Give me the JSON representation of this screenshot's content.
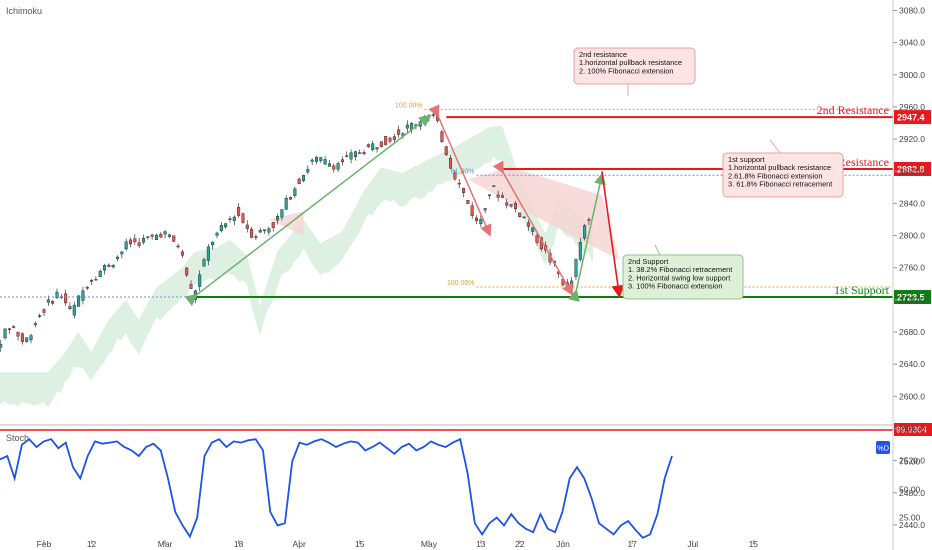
{
  "chart_data": [
    {
      "type": "line",
      "subtype": "candlestick",
      "indicator_label": "Ichimoku",
      "y_ticks": [
        2440,
        2480,
        2520,
        2560,
        2600,
        2640,
        2680,
        2720,
        2760,
        2800,
        2840,
        2880,
        2920,
        2960,
        3000,
        3040,
        3080
      ],
      "ylim": [
        2425,
        3100
      ],
      "x_labels": [
        "Feb",
        "12",
        "Mar",
        "18",
        "Apr",
        "15",
        "May",
        "13",
        "22",
        "Jun",
        "17",
        "Jul",
        "15"
      ],
      "price_path": [
        {
          "d": "Jan 18",
          "p": 2640
        },
        {
          "d": "Jan 22",
          "p": 2665
        },
        {
          "d": "Jan 25",
          "p": 2690
        },
        {
          "d": "Jan 28",
          "p": 2665
        },
        {
          "d": "Feb 1",
          "p": 2705
        },
        {
          "d": "Feb 5",
          "p": 2730
        },
        {
          "d": "Feb 8",
          "p": 2705
        },
        {
          "d": "Feb 12",
          "p": 2745
        },
        {
          "d": "Feb 18",
          "p": 2770
        },
        {
          "d": "Feb 21",
          "p": 2790
        },
        {
          "d": "Feb 26",
          "p": 2795
        },
        {
          "d": "Mar 1",
          "p": 2805
        },
        {
          "d": "Mar 5",
          "p": 2785
        },
        {
          "d": "Mar 8",
          "p": 2723
        },
        {
          "d": "Mar 12",
          "p": 2790
        },
        {
          "d": "Mar 18",
          "p": 2830
        },
        {
          "d": "Mar 22",
          "p": 2800
        },
        {
          "d": "Mar 27",
          "p": 2815
        },
        {
          "d": "Apr 1",
          "p": 2865
        },
        {
          "d": "Apr 5",
          "p": 2895
        },
        {
          "d": "Apr 10",
          "p": 2888
        },
        {
          "d": "Apr 16",
          "p": 2905
        },
        {
          "d": "Apr 22",
          "p": 2920
        },
        {
          "d": "Apr 30",
          "p": 2945
        },
        {
          "d": "May 3",
          "p": 2947
        },
        {
          "d": "May 7",
          "p": 2882
        },
        {
          "d": "May 13",
          "p": 2812
        },
        {
          "d": "May 16",
          "p": 2860
        },
        {
          "d": "May 20",
          "p": 2840
        },
        {
          "d": "May 23",
          "p": 2826
        },
        {
          "d": "May 28",
          "p": 2784
        },
        {
          "d": "Jun 3",
          "p": 2730
        },
        {
          "d": "Jun 7",
          "p": 2820
        }
      ],
      "fibonacci": [
        {
          "label": "100.00%",
          "level": 2957
        },
        {
          "label": "61.80%",
          "level": 2875
        },
        {
          "label": "100.00%",
          "level": 2736
        }
      ],
      "levels": [
        {
          "name": "2nd Resistance",
          "price": "2947.4",
          "value": 2947.4,
          "color": "#e8181e"
        },
        {
          "name": "1st Resistance",
          "price": "2882.8",
          "value": 2882.8,
          "color": "#e8181e"
        },
        {
          "name": "1st Support",
          "price": "2723.5",
          "value": 2723.5,
          "color": "#0f7d12"
        }
      ],
      "annotations": [
        {
          "id": "second-resistance",
          "lines": [
            "2nd resistance",
            "1.horizontal pullback resistance",
            "2. 100% Fibonacci extension"
          ]
        },
        {
          "id": "first-support",
          "lines": [
            "1st support",
            "1.horizontal pullback resistance",
            "2.61.8% Fibonacci extension",
            "3. 61.8% Fibonacci retracement"
          ]
        },
        {
          "id": "second-support",
          "lines": [
            "2nd Support",
            "1. 38.2% Fibonacci retracement",
            "2. Horizontal swing low support",
            "3. 100% Fibonacci extension"
          ]
        }
      ],
      "colors": {
        "up": "#26a69a",
        "down": "#ef5350",
        "cloud": "#cfe9d4",
        "cloud_red": "#f6d3d3"
      }
    },
    {
      "type": "line",
      "indicator_label": "Stoch",
      "y_ticks": [
        25.0,
        50.0,
        75.0
      ],
      "ylim": [
        5,
        105
      ],
      "upper_line_value": "99.9304",
      "badge": "%D",
      "series": [
        {
          "color": "#1e53e5",
          "values": [
            77,
            80,
            60,
            90,
            95,
            88,
            93,
            95,
            87,
            92,
            70,
            60,
            80,
            93,
            91,
            92,
            93,
            88,
            85,
            80,
            88,
            91,
            85,
            60,
            30,
            18,
            8,
            25,
            80,
            92,
            95,
            88,
            93,
            92,
            94,
            95,
            85,
            30,
            18,
            20,
            75,
            92,
            90,
            93,
            95,
            92,
            88,
            91,
            93,
            92,
            85,
            88,
            92,
            87,
            82,
            88,
            91,
            85,
            88,
            93,
            90,
            88,
            92,
            95,
            65,
            20,
            10,
            20,
            25,
            18,
            28,
            20,
            15,
            12,
            28,
            15,
            12,
            30,
            60,
            70,
            60,
            42,
            20,
            15,
            10,
            18,
            22,
            14,
            7,
            10,
            28,
            60,
            80
          ]
        }
      ]
    }
  ]
}
